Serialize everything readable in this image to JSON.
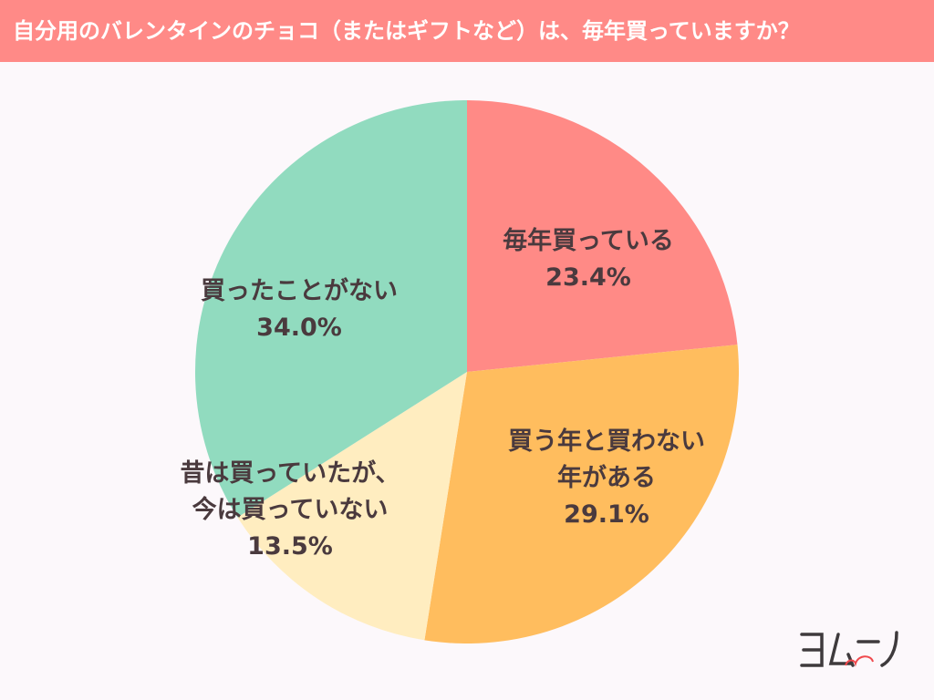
{
  "header": {
    "title": "自分用のバレンタインのチョコ（またはギフトなど）は、毎年買っていますか？"
  },
  "chart_data": {
    "type": "pie",
    "title": "自分用のバレンタインのチョコ（またはギフトなど）は、毎年買っていますか？",
    "start": "top",
    "direction": "clockwise",
    "slices": [
      {
        "label": "毎年買っている",
        "value": 23.4,
        "value_text": "23.4%",
        "color": "#ff8a86"
      },
      {
        "label": "買う年と買わない年がある",
        "label_lines": [
          "買う年と買わない",
          "年がある"
        ],
        "value": 29.1,
        "value_text": "29.1%",
        "color": "#ffbd5e"
      },
      {
        "label": "昔は買っていたが、今は買っていない",
        "label_lines": [
          "昔は買っていたが、",
          "今は買っていない"
        ],
        "value": 13.5,
        "value_text": "13.5%",
        "color": "#ffedc0"
      },
      {
        "label": "買ったことがない",
        "value": 34.0,
        "value_text": "34.0%",
        "color": "#91dbbf"
      }
    ]
  },
  "logo": {
    "text": "ヨムーノ"
  }
}
